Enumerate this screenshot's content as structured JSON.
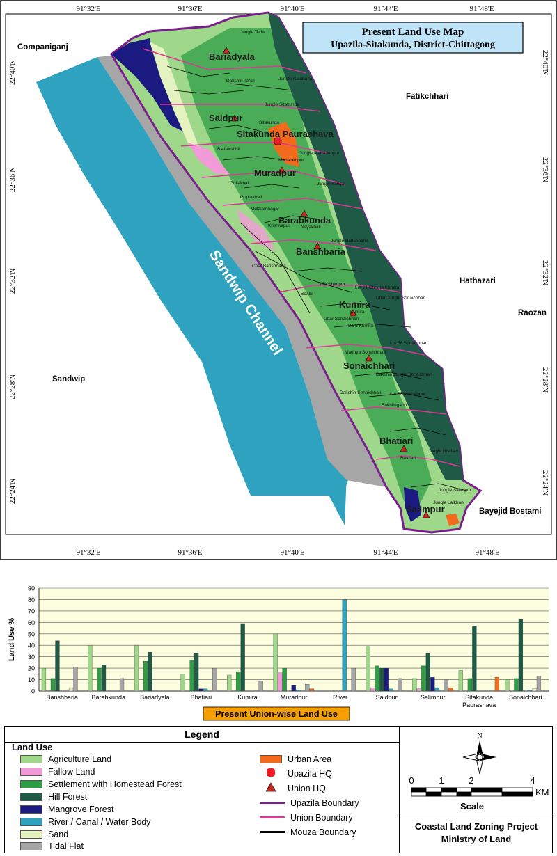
{
  "map": {
    "title_line1": "Present  Land Use  Map",
    "title_line2": "Upazila-Sitakunda, District-Chittagong",
    "top_coords": [
      "91°32'E",
      "91°36'E",
      "91°40'E",
      "91°44'E",
      "91°48'E"
    ],
    "bottom_coords": [
      "91°32'E",
      "91°36'E",
      "91°40'E",
      "91°44'E",
      "91°48'E"
    ],
    "left_coords": [
      "22°40'N",
      "22°36'N",
      "22°32'N",
      "22°28'N",
      "22°24'N"
    ],
    "right_coords": [
      "22°40'N",
      "22°36'N",
      "22°32'N",
      "22°28'N",
      "22°24'N"
    ],
    "channel_label": "Sandwip Channel",
    "neighbors": {
      "companiganj": "Companiganj",
      "fatikchhari": "Fatikchhari",
      "hathazari": "Hathazari",
      "raozan": "Raozan",
      "sandwip": "Sandwip",
      "bayejid": "Bayejid Bostami"
    },
    "unions": {
      "bariadyala": "Bariadyala",
      "saidpur": "Saidpur",
      "paurashava": "Sitakunda Paurashava",
      "muradpur": "Muradpur",
      "barabkunda": "Barabkunda",
      "banshbaria": "Banshbaria",
      "kumira": "Kumira",
      "sonaichhari": "Sonaichhari",
      "bhatiari": "Bhatiari",
      "salimpur": "Salimpur"
    },
    "mouzas": {
      "m1": "Jungle Terial",
      "m2": "Jungle Kalabaria",
      "m3": "Dakshin Terial",
      "m4": "Jungle Sitakunda",
      "m5": "Sitakunda",
      "m6": "Jungle Mahadebpur",
      "m7": "Mahadebpur",
      "m8": "Guliakhali",
      "m9": "Goptakhali",
      "m10": "Mukkamnagar",
      "m11": "Jungle Katigar",
      "m12": "Jungle Banshbaria",
      "m13": "Char Banshbaria",
      "m14": "Uttar Jungle Sonaichhari",
      "m15": "Lot 21 Chhota Kumira",
      "m16": "Baro Kumira",
      "m17": "Lot 56 Sonaichhari",
      "m18": "Dakshin Jungle Sonaichhari",
      "m19": "Dakshin Sonaichhari",
      "m20": "Lot 68 Keshabpur",
      "m21": "Jungle Bhatiari",
      "m22": "Bhatiari",
      "m23": "Jungle Salimpur",
      "m24": "Jungle Lalkhan",
      "m25": "Madhya Sonaichhari",
      "m26": "Uttar Sonaichhari",
      "m27": "Machhimpur",
      "m28": "Bathershhil",
      "m29": "Krishnapur",
      "m30": "Nayakhali",
      "m31": "Sakhimgaon",
      "m32": "Boalia",
      "m33": "Kumira"
    }
  },
  "chart_data": {
    "type": "bar",
    "title": "Present Union-wise Land Use",
    "ylabel": "Land Use %",
    "ylim": [
      0,
      90
    ],
    "yticks": [
      0,
      10,
      20,
      30,
      40,
      50,
      60,
      70,
      80,
      90
    ],
    "categories": [
      "Banshbaria",
      "Barabkunda",
      "Bariadyala",
      "Bhatiari",
      "Kumira",
      "Muradpur",
      "River",
      "Saidpur",
      "Salimpur",
      "Sitakunda Paurashava",
      "Sonaichhari"
    ],
    "series": [
      {
        "name": "Agriculture Land",
        "color": "#9fd88a",
        "values": [
          20,
          40,
          40,
          15,
          14,
          50,
          0,
          39,
          11,
          18,
          10
        ]
      },
      {
        "name": "Fallow Land",
        "color": "#f29ad8",
        "values": [
          0,
          0,
          0,
          0,
          0,
          16,
          0,
          3,
          2,
          0,
          0
        ]
      },
      {
        "name": "Settlement with Homestead Forest",
        "color": "#2e9e45",
        "values": [
          11,
          20,
          26,
          27,
          17,
          20,
          0,
          22,
          22,
          11,
          11
        ]
      },
      {
        "name": "Hill Forest",
        "color": "#1f5a46",
        "values": [
          44,
          23,
          34,
          33,
          59,
          0,
          0,
          20,
          33,
          57,
          63
        ]
      },
      {
        "name": "Mangrove Forest",
        "color": "#1a1a80",
        "values": [
          0,
          0,
          0,
          2,
          0,
          5,
          0,
          20,
          12,
          0,
          0
        ]
      },
      {
        "name": "River / Canal / Water Body",
        "color": "#2ea2bf",
        "values": [
          0,
          0,
          0,
          2,
          0,
          1,
          80,
          2,
          3,
          0,
          1
        ]
      },
      {
        "name": "Sand",
        "color": "#e4f2c0",
        "values": [
          3,
          0,
          0,
          0,
          0,
          0,
          0,
          0,
          0,
          0,
          2
        ]
      },
      {
        "name": "Tidal Flat",
        "color": "#a6a6a6",
        "values": [
          21,
          11,
          0,
          20,
          9,
          6,
          20,
          11,
          10,
          0,
          13
        ]
      },
      {
        "name": "Urban Area",
        "color": "#f26b1d",
        "values": [
          0,
          0,
          0,
          0,
          0,
          2,
          0,
          0,
          3,
          12,
          0
        ]
      }
    ]
  },
  "legend": {
    "title": "Legend",
    "heading": "Land Use",
    "items": [
      {
        "label": "Agriculture Land",
        "color": "#9fd88a"
      },
      {
        "label": "Fallow Land",
        "color": "#f29ad8"
      },
      {
        "label": "Settlement with Homestead Forest",
        "color": "#2e9e45"
      },
      {
        "label": "Hill Forest",
        "color": "#1f5a46"
      },
      {
        "label": "Mangrove Forest",
        "color": "#1a1a80"
      },
      {
        "label": "River / Canal / Water Body",
        "color": "#2ea2bf"
      },
      {
        "label": "Sand",
        "color": "#e4f2c0"
      },
      {
        "label": "Tidal Flat",
        "color": "#a6a6a6"
      }
    ],
    "symbols": {
      "urban": "Urban Area",
      "upazila_hq": "Upazila HQ",
      "union_hq": "Union HQ",
      "upazila_boundary": "Upazila Boundary",
      "union_boundary": "Union Boundary",
      "mouza_boundary": "Mouza Boundary"
    },
    "colors": {
      "urban": "#f26b1d",
      "upazila_hq": "#ee1c24",
      "union_hq": "#c42a1f",
      "upazila_boundary": "#7a1e8c",
      "union_boundary": "#e0359a",
      "mouza_boundary": "#000000"
    },
    "scale": {
      "ticks": [
        "0",
        "1",
        "2",
        "4"
      ],
      "unit": "KM",
      "label": "Scale"
    },
    "north": "N",
    "footer_line1": "Coastal Land Zoning Project",
    "footer_line2": "Ministry of Land"
  }
}
